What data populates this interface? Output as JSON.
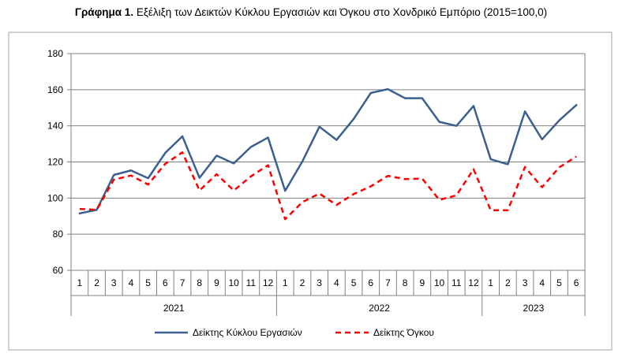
{
  "title": {
    "prefix": "Γράφημα 1.",
    "text": "Εξέλιξη των Δεικτών Κύκλου Εργασιών και Όγκου στο Χονδρικό Εμπόριο (2015=100,0)"
  },
  "chart_data": {
    "type": "line",
    "ylim": [
      60,
      180
    ],
    "yticks": [
      60,
      80,
      100,
      120,
      140,
      160,
      180
    ],
    "months": [
      "1",
      "2",
      "3",
      "4",
      "5",
      "6",
      "7",
      "8",
      "9",
      "10",
      "11",
      "12",
      "1",
      "2",
      "3",
      "4",
      "5",
      "6",
      "7",
      "8",
      "9",
      "10",
      "11",
      "12",
      "1",
      "2",
      "3",
      "4",
      "5",
      "6"
    ],
    "years": [
      {
        "label": "2021",
        "months": 12
      },
      {
        "label": "2022",
        "months": 12
      },
      {
        "label": "2023",
        "months": 6
      }
    ],
    "grid": true,
    "legend_position": "bottom",
    "series": [
      {
        "name": "Δείκτης Κύκλου Εργασιών",
        "color": "#3b5f8f",
        "dash": "solid",
        "values": [
          91.5,
          93.5,
          112.8,
          115.3,
          111,
          125,
          134.2,
          111.2,
          123.5,
          119.2,
          128.3,
          133.5,
          104,
          120.2,
          139.5,
          132.2,
          143.8,
          158.2,
          160.3,
          155.3,
          155.3,
          142.2,
          140,
          151,
          121.5,
          118.7,
          148,
          132.5,
          143,
          151.5
        ]
      },
      {
        "name": "Δείκτης Όγκου",
        "color": "#ff0000",
        "dash": "dashed",
        "values": [
          94,
          93.5,
          110.2,
          112.5,
          107.5,
          119,
          125.3,
          104.2,
          113.2,
          104.2,
          112,
          118.2,
          88.3,
          97.7,
          102.5,
          96.2,
          102.2,
          106.5,
          112.3,
          110.5,
          110.8,
          99,
          101.5,
          116,
          93.3,
          93.3,
          117.2,
          106,
          117,
          123
        ]
      }
    ]
  }
}
